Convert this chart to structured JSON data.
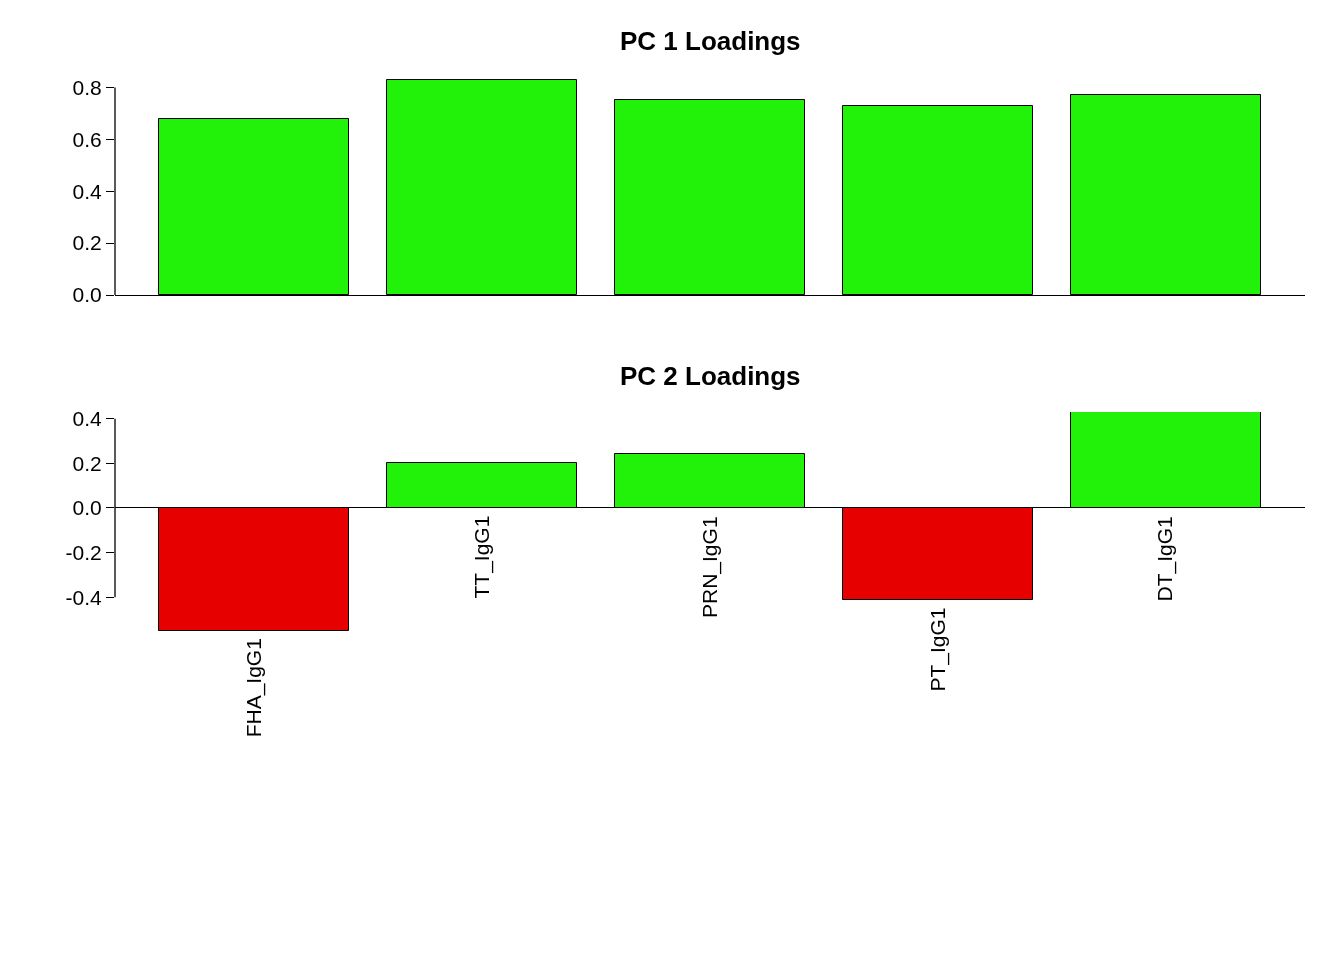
{
  "chart_data": [
    {
      "type": "bar",
      "title": "PC 1 Loadings",
      "categories": [
        null,
        null,
        null,
        null,
        null
      ],
      "values": [
        0.68,
        0.83,
        0.75,
        0.73,
        0.77
      ],
      "colors": [
        "#22f20a",
        "#22f20a",
        "#22f20a",
        "#22f20a",
        "#22f20a"
      ],
      "ylim": [
        0,
        0.84
      ],
      "yticks": [
        {
          "value": 0,
          "label": "0.0"
        },
        {
          "value": 0.2,
          "label": "0.2"
        },
        {
          "value": 0.4,
          "label": "0.4"
        },
        {
          "value": 0.6,
          "label": "0.6"
        },
        {
          "value": 0.8,
          "label": "0.8"
        }
      ],
      "tick_labels": "y"
    },
    {
      "type": "bar",
      "title": "PC 2 Loadings",
      "categories": [
        "FHA_IgG1",
        "TT_IgG1",
        "PRN_IgG1",
        "PT_IgG1",
        "DT_IgG1"
      ],
      "values": [
        -0.55,
        0.2,
        0.24,
        -0.41,
        0.43
      ],
      "colors": [
        "#e60000",
        "#22f20a",
        "#22f20a",
        "#e60000",
        "#22f20a"
      ],
      "ylim": [
        -0.56,
        0.43
      ],
      "yticks": [
        {
          "value": -0.4,
          "label": "-0.4"
        },
        {
          "value": -0.2,
          "label": "-0.2"
        },
        {
          "value": 0,
          "label": "0.0"
        },
        {
          "value": 0.2,
          "label": "0.2"
        },
        {
          "value": 0.4,
          "label": "0.4"
        }
      ],
      "data_labels": false
    }
  ]
}
